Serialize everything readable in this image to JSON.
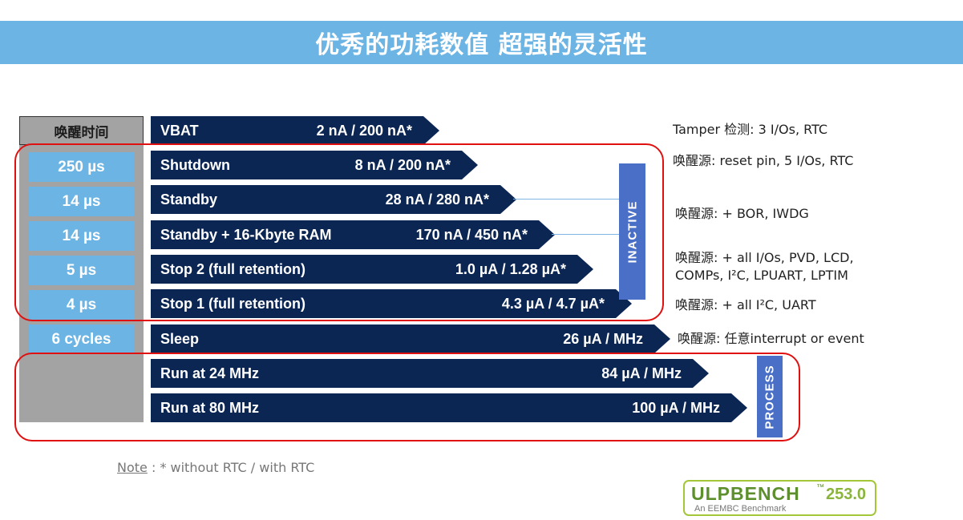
{
  "header": {
    "title": "优秀的功耗数值 超强的灵活性"
  },
  "wake_column": {
    "header": "唤醒时间",
    "cells": [
      "250 µs",
      "14 µs",
      "14 µs",
      "5 µs",
      "4 µs",
      "6 cycles"
    ]
  },
  "modes": [
    {
      "name": "VBAT",
      "value": "2 nA / 200 nA*"
    },
    {
      "name": "Shutdown",
      "value": "8 nA / 200 nA*"
    },
    {
      "name": "Standby",
      "value": "28 nA / 280 nA*"
    },
    {
      "name": "Standby + 16-Kbyte RAM",
      "value": "170 nA / 450 nA*"
    },
    {
      "name": "Stop 2 (full retention)",
      "value": "1.0 µA / 1.28 µA*"
    },
    {
      "name": "Stop 1 (full retention)",
      "value": "4.3 µA / 4.7 µA*"
    },
    {
      "name": "Sleep",
      "value": "26 µA / MHz"
    },
    {
      "name": "Run at 24 MHz",
      "value": "84 µA / MHz"
    },
    {
      "name": "Run at 80 MHz",
      "value": "100 µA / MHz"
    }
  ],
  "labels": {
    "inactive": "INACTIVE",
    "process": "PROCESS"
  },
  "wakeup_notes": [
    {
      "lines": [
        "Tamper 检测: 3 I/Os, RTC"
      ]
    },
    {
      "lines": [
        "唤醒源: reset pin, 5 I/Os, RTC"
      ]
    },
    {
      "lines": [
        "唤醒源: + BOR, IWDG"
      ]
    },
    {
      "lines": [
        "唤醒源: + all I/Os, PVD, LCD,",
        "COMPs, I²C, LPUART, LPTIM"
      ]
    },
    {
      "lines": [
        "唤醒源: + all I²C, UART"
      ]
    },
    {
      "lines": [
        "唤醒源: 任意interrupt or event"
      ]
    }
  ],
  "footnote": {
    "label": "Note",
    "text": " : * without RTC / with RTC"
  },
  "logo": {
    "brand": "ULPBENCH",
    "tm": "™",
    "score": "253.0",
    "subtitle": "An EEMBC Benchmark"
  },
  "colors": {
    "title_bar": "#6cb4e4",
    "bar": "#0b2652",
    "wake_cell": "#6cb4e4",
    "gray_column": "#a3a3a3",
    "label_box": "#4a6fc7",
    "group_outline": "#e01010"
  }
}
